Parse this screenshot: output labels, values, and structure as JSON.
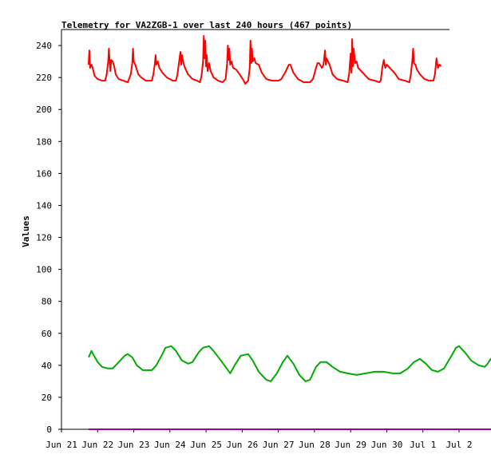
{
  "chart_data": {
    "type": "line",
    "title": "Telemetry for VA2ZGB-1 over last 240 hours (467 points)",
    "xlabel": "",
    "ylabel": "Values",
    "xlim": [
      "2023-06-21",
      "2023-07-02"
    ],
    "ylim": [
      0,
      250
    ],
    "x_ticks": [
      "Jun 21",
      "Jun 22",
      "Jun 23",
      "Jun 24",
      "Jun 25",
      "Jun 26",
      "Jun 27",
      "Jun 28",
      "Jun 29",
      "Jun 30",
      "Jul 1",
      "Jul 2"
    ],
    "y_ticks": [
      0,
      20,
      40,
      60,
      80,
      100,
      120,
      140,
      160,
      180,
      200,
      220,
      240
    ],
    "grid": false,
    "legend": "none",
    "series": [
      {
        "color": "#ff0000",
        "points": [
          [
            "2023-06-21T18:00",
            228
          ],
          [
            "2023-06-21T18:30",
            237
          ],
          [
            "2023-06-21T19:00",
            226
          ],
          [
            "2023-06-21T20:00",
            228
          ],
          [
            "2023-06-21T21:00",
            225
          ],
          [
            "2023-06-21T22:00",
            221
          ],
          [
            "2023-06-22T00:00",
            219
          ],
          [
            "2023-06-22T03:00",
            218
          ],
          [
            "2023-06-22T05:00",
            218
          ],
          [
            "2023-06-22T06:00",
            222
          ],
          [
            "2023-06-22T07:00",
            230
          ],
          [
            "2023-06-22T07:30",
            238
          ],
          [
            "2023-06-22T08:00",
            229
          ],
          [
            "2023-06-22T08:30",
            224
          ],
          [
            "2023-06-22T09:00",
            231
          ],
          [
            "2023-06-22T10:00",
            230
          ],
          [
            "2023-06-22T11:00",
            227
          ],
          [
            "2023-06-22T12:00",
            222
          ],
          [
            "2023-06-22T14:00",
            219
          ],
          [
            "2023-06-22T17:00",
            218
          ],
          [
            "2023-06-22T20:00",
            217
          ],
          [
            "2023-06-22T22:00",
            222
          ],
          [
            "2023-06-22T23:00",
            229
          ],
          [
            "2023-06-22T23:30",
            238
          ],
          [
            "2023-06-23T00:00",
            230
          ],
          [
            "2023-06-23T01:00",
            228
          ],
          [
            "2023-06-23T02:00",
            225
          ],
          [
            "2023-06-23T03:00",
            222
          ],
          [
            "2023-06-23T05:00",
            220
          ],
          [
            "2023-06-23T08:00",
            218
          ],
          [
            "2023-06-23T12:00",
            218
          ],
          [
            "2023-06-23T13:00",
            222
          ],
          [
            "2023-06-23T14:00",
            229
          ],
          [
            "2023-06-23T14:30",
            234
          ],
          [
            "2023-06-23T15:00",
            228
          ],
          [
            "2023-06-23T16:00",
            230
          ],
          [
            "2023-06-23T17:00",
            226
          ],
          [
            "2023-06-23T19:00",
            223
          ],
          [
            "2023-06-23T22:00",
            220
          ],
          [
            "2023-06-24T02:00",
            218
          ],
          [
            "2023-06-24T04:00",
            218
          ],
          [
            "2023-06-24T05:00",
            222
          ],
          [
            "2023-06-24T06:00",
            229
          ],
          [
            "2023-06-24T07:00",
            236
          ],
          [
            "2023-06-24T07:30",
            228
          ],
          [
            "2023-06-24T08:00",
            234
          ],
          [
            "2023-06-24T09:00",
            229
          ],
          [
            "2023-06-24T10:00",
            226
          ],
          [
            "2023-06-24T12:00",
            222
          ],
          [
            "2023-06-24T15:00",
            219
          ],
          [
            "2023-06-24T18:00",
            218
          ],
          [
            "2023-06-24T20:00",
            217
          ],
          [
            "2023-06-24T21:00",
            221
          ],
          [
            "2023-06-24T22:00",
            230
          ],
          [
            "2023-06-24T22:30",
            246
          ],
          [
            "2023-06-24T23:00",
            232
          ],
          [
            "2023-06-24T23:30",
            243
          ],
          [
            "2023-06-25T00:00",
            227
          ],
          [
            "2023-06-25T00:30",
            234
          ],
          [
            "2023-06-25T01:00",
            224
          ],
          [
            "2023-06-25T02:00",
            229
          ],
          [
            "2023-06-25T03:00",
            224
          ],
          [
            "2023-06-25T05:00",
            220
          ],
          [
            "2023-06-25T08:00",
            218
          ],
          [
            "2023-06-25T11:00",
            217
          ],
          [
            "2023-06-25T13:00",
            219
          ],
          [
            "2023-06-25T14:00",
            229
          ],
          [
            "2023-06-25T14:30",
            240
          ],
          [
            "2023-06-25T15:00",
            231
          ],
          [
            "2023-06-25T15:30",
            238
          ],
          [
            "2023-06-25T16:00",
            228
          ],
          [
            "2023-06-25T17:00",
            230
          ],
          [
            "2023-06-25T18:00",
            226
          ],
          [
            "2023-06-25T20:00",
            225
          ],
          [
            "2023-06-25T23:00",
            221
          ],
          [
            "2023-06-26T01:00",
            218
          ],
          [
            "2023-06-26T02:00",
            216
          ],
          [
            "2023-06-26T04:00",
            218
          ],
          [
            "2023-06-26T05:00",
            226
          ],
          [
            "2023-06-26T05:30",
            243
          ],
          [
            "2023-06-26T06:00",
            229
          ],
          [
            "2023-06-26T06:30",
            238
          ],
          [
            "2023-06-26T07:00",
            230
          ],
          [
            "2023-06-26T08:00",
            232
          ],
          [
            "2023-06-26T09:00",
            229
          ],
          [
            "2023-06-26T11:00",
            228
          ],
          [
            "2023-06-26T13:00",
            223
          ],
          [
            "2023-06-26T16:00",
            219
          ],
          [
            "2023-06-26T20:00",
            218
          ],
          [
            "2023-06-27T00:00",
            218
          ],
          [
            "2023-06-27T02:00",
            219
          ],
          [
            "2023-06-27T05:00",
            224
          ],
          [
            "2023-06-27T07:00",
            228
          ],
          [
            "2023-06-27T08:00",
            228
          ],
          [
            "2023-06-27T10:00",
            223
          ],
          [
            "2023-06-27T13:00",
            219
          ],
          [
            "2023-06-27T17:00",
            217
          ],
          [
            "2023-06-27T21:00",
            217
          ],
          [
            "2023-06-27T23:00",
            219
          ],
          [
            "2023-06-28T01:00",
            226
          ],
          [
            "2023-06-28T02:00",
            229
          ],
          [
            "2023-06-28T03:00",
            229
          ],
          [
            "2023-06-28T05:00",
            226
          ],
          [
            "2023-06-28T06:00",
            228
          ],
          [
            "2023-06-28T07:00",
            237
          ],
          [
            "2023-06-28T07:30",
            228
          ],
          [
            "2023-06-28T08:00",
            232
          ],
          [
            "2023-06-28T10:00",
            228
          ],
          [
            "2023-06-28T12:00",
            222
          ],
          [
            "2023-06-28T15:00",
            219
          ],
          [
            "2023-06-28T19:00",
            218
          ],
          [
            "2023-06-28T22:00",
            217
          ],
          [
            "2023-06-28T23:00",
            222
          ],
          [
            "2023-06-29T00:00",
            235
          ],
          [
            "2023-06-29T00:30",
            223
          ],
          [
            "2023-06-29T01:00",
            244
          ],
          [
            "2023-06-29T01:30",
            227
          ],
          [
            "2023-06-29T02:00",
            238
          ],
          [
            "2023-06-29T03:00",
            229
          ],
          [
            "2023-06-29T04:00",
            230
          ],
          [
            "2023-06-29T05:00",
            226
          ],
          [
            "2023-06-29T08:00",
            223
          ],
          [
            "2023-06-29T12:00",
            219
          ],
          [
            "2023-06-29T16:00",
            218
          ],
          [
            "2023-06-29T19:00",
            217
          ],
          [
            "2023-06-29T20:00",
            218
          ],
          [
            "2023-06-29T21:00",
            226
          ],
          [
            "2023-06-29T22:00",
            231
          ],
          [
            "2023-06-29T23:00",
            226
          ],
          [
            "2023-06-30T00:00",
            228
          ],
          [
            "2023-06-30T02:00",
            226
          ],
          [
            "2023-06-30T05:00",
            223
          ],
          [
            "2023-06-30T08:00",
            219
          ],
          [
            "2023-06-30T12:00",
            218
          ],
          [
            "2023-06-30T15:00",
            217
          ],
          [
            "2023-06-30T16:00",
            222
          ],
          [
            "2023-06-30T17:00",
            231
          ],
          [
            "2023-06-30T17:30",
            238
          ],
          [
            "2023-06-30T18:00",
            229
          ],
          [
            "2023-06-30T19:00",
            228
          ],
          [
            "2023-06-30T20:00",
            225
          ],
          [
            "2023-06-30T22:00",
            222
          ],
          [
            "2023-07-01T01:00",
            219
          ],
          [
            "2023-07-01T04:00",
            218
          ],
          [
            "2023-07-01T07:00",
            218
          ],
          [
            "2023-07-01T08:00",
            222
          ],
          [
            "2023-07-01T09:00",
            232
          ],
          [
            "2023-07-01T09:30",
            229
          ],
          [
            "2023-07-01T10:00",
            226
          ],
          [
            "2023-07-01T11:00",
            228
          ],
          [
            "2023-07-01T12:00",
            227
          ]
        ]
      },
      {
        "color": "#00aa00",
        "points": [
          [
            "2023-06-21T18:00",
            45
          ],
          [
            "2023-06-21T19:00",
            47
          ],
          [
            "2023-06-21T20:00",
            49
          ],
          [
            "2023-06-21T21:00",
            47
          ],
          [
            "2023-06-22T00:00",
            42
          ],
          [
            "2023-06-22T03:00",
            39
          ],
          [
            "2023-06-22T07:00",
            38
          ],
          [
            "2023-06-22T10:00",
            38
          ],
          [
            "2023-06-22T14:00",
            42
          ],
          [
            "2023-06-22T18:00",
            46
          ],
          [
            "2023-06-22T20:00",
            47
          ],
          [
            "2023-06-22T23:00",
            45
          ],
          [
            "2023-06-23T02:00",
            40
          ],
          [
            "2023-06-23T06:00",
            37
          ],
          [
            "2023-06-23T12:00",
            37
          ],
          [
            "2023-06-23T15:00",
            40
          ],
          [
            "2023-06-23T19:00",
            47
          ],
          [
            "2023-06-23T21:00",
            51
          ],
          [
            "2023-06-24T01:00",
            52
          ],
          [
            "2023-06-24T04:00",
            49
          ],
          [
            "2023-06-24T08:00",
            43
          ],
          [
            "2023-06-24T12:00",
            41
          ],
          [
            "2023-06-24T15:00",
            42
          ],
          [
            "2023-06-24T19:00",
            48
          ],
          [
            "2023-06-24T22:00",
            51
          ],
          [
            "2023-06-25T02:00",
            52
          ],
          [
            "2023-06-25T05:00",
            49
          ],
          [
            "2023-06-25T09:00",
            44
          ],
          [
            "2023-06-25T13:00",
            39
          ],
          [
            "2023-06-25T16:00",
            35
          ],
          [
            "2023-06-25T19:00",
            40
          ],
          [
            "2023-06-25T23:00",
            46
          ],
          [
            "2023-06-26T04:00",
            47
          ],
          [
            "2023-06-26T07:00",
            43
          ],
          [
            "2023-06-26T11:00",
            36
          ],
          [
            "2023-06-26T16:00",
            31
          ],
          [
            "2023-06-26T19:00",
            30
          ],
          [
            "2023-06-26T23:00",
            35
          ],
          [
            "2023-06-27T03:00",
            42
          ],
          [
            "2023-06-27T06:00",
            46
          ],
          [
            "2023-06-27T10:00",
            41
          ],
          [
            "2023-06-27T14:00",
            34
          ],
          [
            "2023-06-27T18:00",
            30
          ],
          [
            "2023-06-27T21:00",
            31
          ],
          [
            "2023-06-28T01:00",
            39
          ],
          [
            "2023-06-28T04:00",
            42
          ],
          [
            "2023-06-28T08:00",
            42
          ],
          [
            "2023-06-28T12:00",
            39
          ],
          [
            "2023-06-28T17:00",
            36
          ],
          [
            "2023-06-28T22:00",
            35
          ],
          [
            "2023-06-29T04:00",
            34
          ],
          [
            "2023-06-29T10:00",
            35
          ],
          [
            "2023-06-29T16:00",
            36
          ],
          [
            "2023-06-29T22:00",
            36
          ],
          [
            "2023-06-30T04:00",
            35
          ],
          [
            "2023-06-30T09:00",
            35
          ],
          [
            "2023-06-30T14:00",
            38
          ],
          [
            "2023-06-30T18:00",
            42
          ],
          [
            "2023-06-30T22:00",
            44
          ],
          [
            "2023-07-01T02:00",
            41
          ],
          [
            "2023-07-01T06:00",
            37
          ],
          [
            "2023-07-01T10:00",
            36
          ],
          [
            "2023-07-01T14:00",
            38
          ],
          [
            "2023-07-01T19:00",
            46
          ],
          [
            "2023-07-01T22:00",
            51
          ],
          [
            "2023-07-02T00:00",
            52
          ],
          [
            "2023-07-02T04:00",
            48
          ],
          [
            "2023-07-02T08:00",
            43
          ],
          [
            "2023-07-02T13:00",
            40
          ],
          [
            "2023-07-02T17:00",
            39
          ],
          [
            "2023-07-02T19:00",
            41
          ],
          [
            "2023-07-02T21:00",
            44
          ],
          [
            "2023-07-02T22:00",
            44
          ]
        ]
      },
      {
        "color": "#990099",
        "points": [
          [
            "2023-06-21T18:00",
            0
          ],
          [
            "2023-07-02T22:00",
            0
          ]
        ]
      }
    ]
  }
}
